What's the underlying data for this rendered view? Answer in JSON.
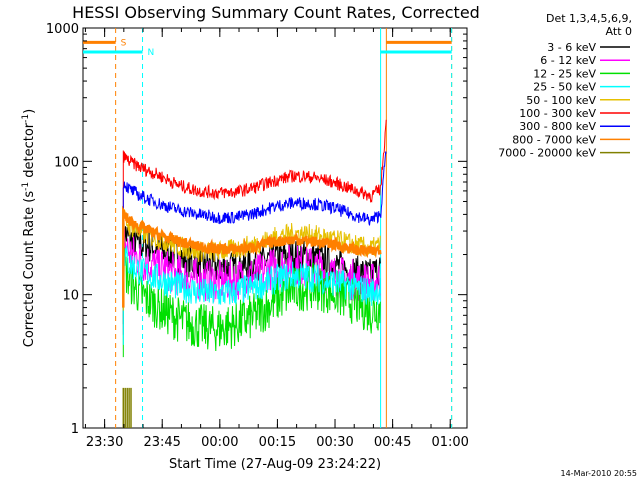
{
  "chart_data": {
    "type": "line",
    "title": "HESSI Observing Summary Count Rates, Corrected",
    "xlabel": "Start Time (27-Aug-09 23:24:22)",
    "ylabel": {
      "main": "Corrected Count Rate (s",
      "sup": "-1",
      "tail": " detector",
      "sup2": "-1",
      "close": ")"
    },
    "y_scale": "log",
    "ylim": [
      1,
      1000
    ],
    "y_ticks": [
      {
        "value": 1,
        "label": "1"
      },
      {
        "value": 10,
        "label": "10"
      },
      {
        "value": 100,
        "label": "100"
      },
      {
        "value": 1000,
        "label": "1000"
      }
    ],
    "x_unit": "minutes after 23:24:22",
    "xlim": [
      0,
      100
    ],
    "x_ticks": [
      {
        "value": 5.63,
        "label": "23:30"
      },
      {
        "value": 20.63,
        "label": "23:45"
      },
      {
        "value": 35.63,
        "label": "00:00"
      },
      {
        "value": 50.63,
        "label": "00:15"
      },
      {
        "value": 65.63,
        "label": "00:30"
      },
      {
        "value": 80.63,
        "label": "00:45"
      },
      {
        "value": 95.63,
        "label": "01:00"
      }
    ],
    "legend": {
      "placement": "top-right, outside plot",
      "header": [
        "Det 1,3,4,5,6,9,",
        "Att 0"
      ],
      "entries": [
        {
          "label": "3 - 6 keV",
          "color": "#000000"
        },
        {
          "label": "6 - 12 keV",
          "color": "#ff00ff"
        },
        {
          "label": "12 - 25 keV",
          "color": "#00e000"
        },
        {
          "label": "25 - 50 keV",
          "color": "#00ffff"
        },
        {
          "label": "50 - 100 keV",
          "color": "#e6c000"
        },
        {
          "label": "100 - 300 keV",
          "color": "#ff0000"
        },
        {
          "label": "300 - 800 keV",
          "color": "#0000ff"
        },
        {
          "label": "800 - 7000 keV",
          "color": "#ff8000"
        },
        {
          "label": "7000 - 20000 keV",
          "color": "#808000"
        }
      ]
    },
    "markers": [
      {
        "label": "S",
        "color": "#ff8000",
        "x_start": 0,
        "x_end": 8.5,
        "x_end_right": 96.0,
        "x_start_right": 79.0,
        "level": 780
      },
      {
        "label": "N",
        "color": "#00ffff",
        "x_start": 0,
        "x_end": 15.5,
        "x_end_right": 96.0,
        "x_start_right": 77.5,
        "level": 660
      }
    ],
    "vertical_lines": [
      {
        "x": 8.5,
        "color": "#ff8000",
        "style": "dashed"
      },
      {
        "x": 15.5,
        "color": "#00ffff",
        "style": "dashed"
      },
      {
        "x": 77.5,
        "color": "#00ffff",
        "style": "solid"
      },
      {
        "x": 79.0,
        "color": "#ff8000",
        "style": "solid"
      },
      {
        "x": 96.0,
        "color": "#ff8000",
        "style": "dashed"
      },
      {
        "x": 96.0,
        "color": "#00ffff",
        "style": "dashed"
      }
    ],
    "series": [
      {
        "name": "3 - 6 keV",
        "color": "#000000",
        "x": [
          10.5,
          12,
          15,
          20,
          25,
          30,
          35,
          40,
          45,
          50,
          55,
          60,
          65,
          70,
          75,
          77.5
        ],
        "y": [
          30,
          26,
          24,
          22,
          19,
          17,
          16,
          16,
          17,
          19,
          20,
          19,
          17,
          15,
          14,
          16
        ]
      },
      {
        "name": "6 - 12 keV",
        "color": "#ff00ff",
        "x": [
          10.5,
          12,
          15,
          20,
          25,
          30,
          35,
          40,
          45,
          50,
          55,
          60,
          65,
          70,
          75,
          77.5
        ],
        "y": [
          25,
          21,
          18,
          16,
          14,
          13,
          12.5,
          13,
          14,
          16,
          17,
          16,
          14,
          13,
          12,
          13
        ]
      },
      {
        "name": "12 - 25 keV",
        "color": "#00e000",
        "x": [
          10.5,
          12,
          15,
          20,
          25,
          30,
          35,
          40,
          45,
          50,
          55,
          60,
          65,
          70,
          75,
          77.5
        ],
        "y": [
          17,
          13,
          10,
          8,
          6.5,
          5.8,
          5.5,
          6,
          7,
          9,
          11,
          11.5,
          10.5,
          9,
          7.5,
          8
        ]
      },
      {
        "name": "25 - 50 keV",
        "color": "#00ffff",
        "x": [
          10.5,
          12,
          15,
          20,
          25,
          30,
          35,
          40,
          45,
          50,
          55,
          60,
          65,
          70,
          75,
          77.5
        ],
        "y": [
          21,
          17,
          15,
          13,
          11.5,
          10.5,
          10,
          10.5,
          11.5,
          13,
          14,
          13.5,
          12.5,
          11.5,
          10.5,
          11
        ]
      },
      {
        "name": "50 - 100 keV",
        "color": "#e6c000",
        "x": [
          10.5,
          12,
          15,
          20,
          25,
          30,
          35,
          40,
          45,
          50,
          55,
          60,
          65,
          70,
          75,
          77.5
        ],
        "y": [
          38,
          33,
          29,
          26,
          23,
          21,
          21,
          22,
          24,
          27,
          29,
          28,
          26,
          24,
          22,
          24
        ]
      },
      {
        "name": "100 - 300 keV",
        "color": "#ff0000",
        "x": [
          10.5,
          12,
          15,
          20,
          25,
          30,
          35,
          40,
          45,
          50,
          55,
          60,
          65,
          70,
          75,
          77.5,
          78.5,
          79
        ],
        "y": [
          110,
          100,
          90,
          78,
          66,
          60,
          58,
          59,
          64,
          72,
          78,
          76,
          70,
          62,
          55,
          62,
          140,
          200
        ]
      },
      {
        "name": "300 - 800 keV",
        "color": "#0000ff",
        "x": [
          10.5,
          12,
          15,
          20,
          25,
          30,
          35,
          40,
          45,
          50,
          55,
          60,
          65,
          70,
          75,
          77.5,
          78.5,
          79
        ],
        "y": [
          70,
          62,
          55,
          48,
          43,
          40,
          38,
          38,
          41,
          46,
          49,
          48,
          45,
          40,
          36,
          40,
          90,
          130
        ]
      },
      {
        "name": "800 - 7000 keV",
        "color": "#ff8000",
        "x": [
          10.5,
          12,
          15,
          20,
          25,
          30,
          35,
          40,
          45,
          50,
          55,
          60,
          65,
          70,
          75,
          77.5
        ],
        "y": [
          40,
          36,
          32,
          28,
          25,
          23,
          22,
          22,
          23,
          25,
          26,
          25,
          24,
          22,
          21,
          22
        ]
      },
      {
        "name": "7000 - 20000 keV",
        "color": "#808000",
        "x": [
          10.5,
          11,
          11.5,
          12,
          12.5
        ],
        "y": [
          2,
          2,
          2,
          2,
          2
        ]
      }
    ],
    "timestamp": "14-Mar-2010 20:55"
  }
}
